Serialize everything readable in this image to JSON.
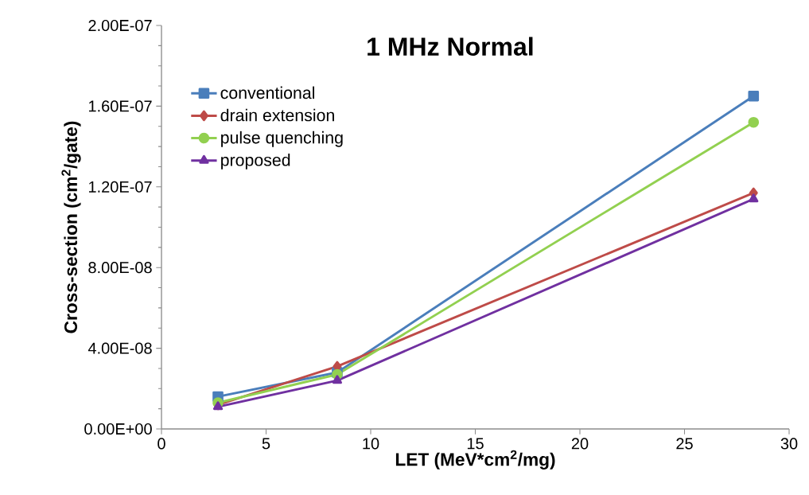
{
  "chart_data": {
    "type": "line",
    "title": "1 MHz Normal",
    "xlabel": "LET (MeV*cm$^{2}$/mg)",
    "ylabel": "Cross-section (cm$^{2}$/gate)",
    "x": [
      2.7,
      8.4,
      28.3
    ],
    "series": [
      {
        "name": "conventional",
        "color": "#4a7ebb",
        "marker": "square",
        "values": [
          1.6e-08,
          2.8e-08,
          1.65e-07
        ]
      },
      {
        "name": "drain extension",
        "color": "#be4b48",
        "marker": "diamond",
        "values": [
          1.2e-08,
          3.1e-08,
          1.17e-07
        ]
      },
      {
        "name": "pulse quenching",
        "color": "#92d050",
        "marker": "circle",
        "values": [
          1.3e-08,
          2.7e-08,
          1.52e-07
        ]
      },
      {
        "name": "proposed",
        "color": "#7030a0",
        "marker": "triangle",
        "values": [
          1.1e-08,
          2.4e-08,
          1.14e-07
        ]
      }
    ],
    "xlim": [
      0,
      30
    ],
    "xticks": [
      0,
      5,
      10,
      15,
      20,
      25,
      30
    ],
    "ylim": [
      0,
      2e-07
    ],
    "yticks": [
      {
        "value": 0,
        "label": "0.00E+00"
      },
      {
        "value": 4e-08,
        "label": "4.00E-08"
      },
      {
        "value": 8e-08,
        "label": "8.00E-08"
      },
      {
        "value": 1.2e-07,
        "label": "1.20E-07"
      },
      {
        "value": 1.6e-07,
        "label": "1.60E-07"
      },
      {
        "value": 2e-07,
        "label": "2.00E-07"
      }
    ],
    "grid": false,
    "legend": "top left",
    "line_style": "solid"
  }
}
